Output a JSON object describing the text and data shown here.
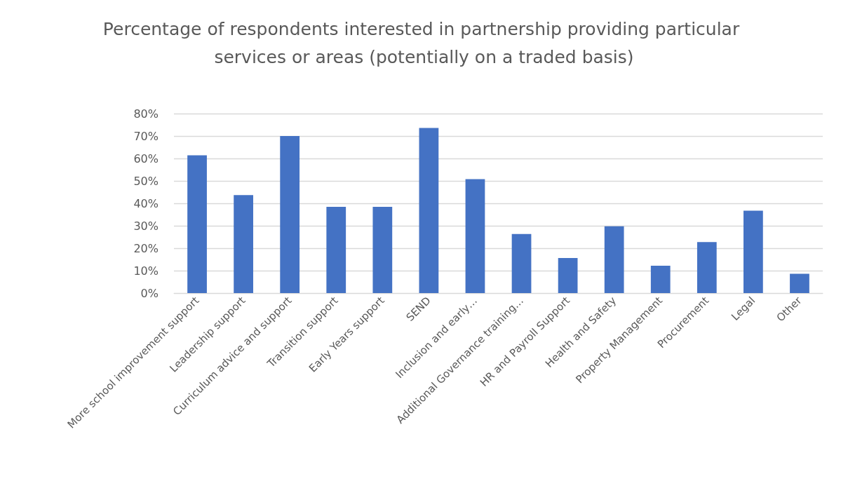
{
  "chart_data": {
    "type": "bar",
    "title": "Percentage of respondents interested in partnership providing particular services or areas (potentially on a traded basis)",
    "categories": [
      "More school improvement support",
      "Leadership support",
      "Curriculum advice and support",
      "Transition support",
      "Early Years support",
      "SEND",
      "Inclusion and early…",
      "Additional Governance training…",
      "HR and Payroll Support",
      "Health and Safety",
      "Property Management",
      "Procurement",
      "Legal",
      "Other"
    ],
    "values": [
      61.4,
      43.7,
      70,
      38.4,
      38.4,
      73.6,
      50.8,
      26.3,
      15.6,
      29.8,
      12.2,
      22.7,
      36.7,
      8.6
    ],
    "color": "#4472c4",
    "ylim": [
      0,
      80
    ],
    "yticks": [
      {
        "value": 0,
        "label": "0%"
      },
      {
        "value": 10,
        "label": "10%"
      },
      {
        "value": 20,
        "label": "20%"
      },
      {
        "value": 30,
        "label": "30%"
      },
      {
        "value": 40,
        "label": "40%"
      },
      {
        "value": 50,
        "label": "50%"
      },
      {
        "value": 60,
        "label": "60%"
      },
      {
        "value": 70,
        "label": "70%"
      },
      {
        "value": 80,
        "label": "80%"
      }
    ],
    "grid": "y"
  }
}
